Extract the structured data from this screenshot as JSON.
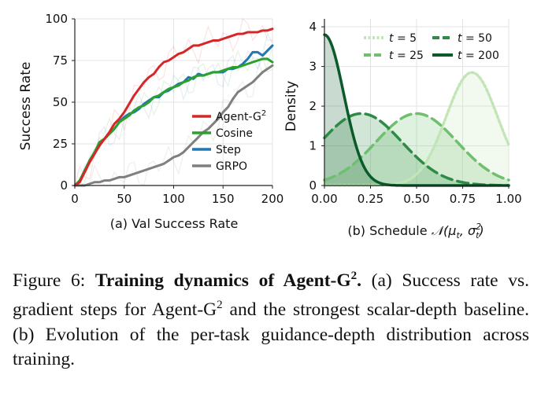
{
  "chart_data": [
    {
      "type": "line",
      "title": "",
      "sub_caption": "(a) Val Success Rate",
      "xlabel": "",
      "ylabel": "Success Rate",
      "xlim": [
        0,
        200
      ],
      "ylim": [
        0,
        100
      ],
      "xticks": [
        0,
        50,
        100,
        150,
        200
      ],
      "yticks": [
        0,
        25,
        50,
        75,
        100
      ],
      "grid": true,
      "legend_position": "lower-right",
      "series": [
        {
          "name": "Agent-G",
          "name_sup": "2",
          "color": "#d62728",
          "x": [
            0,
            5,
            10,
            15,
            20,
            25,
            30,
            35,
            40,
            45,
            50,
            55,
            60,
            65,
            70,
            75,
            80,
            85,
            90,
            95,
            100,
            105,
            110,
            115,
            120,
            125,
            130,
            135,
            140,
            145,
            150,
            155,
            160,
            165,
            170,
            175,
            180,
            185,
            190,
            195,
            200
          ],
          "y": [
            0,
            2,
            8,
            14,
            19,
            24,
            28,
            32,
            37,
            40,
            44,
            49,
            54,
            58,
            62,
            65,
            67,
            71,
            74,
            75,
            77,
            79,
            80,
            82,
            84,
            84,
            85,
            86,
            87,
            87,
            88,
            89,
            90,
            91,
            91,
            92,
            92,
            92,
            93,
            93,
            94
          ]
        },
        {
          "name": "Cosine",
          "color": "#2ca02c",
          "x": [
            0,
            5,
            10,
            15,
            20,
            25,
            30,
            35,
            40,
            45,
            50,
            55,
            60,
            65,
            70,
            75,
            80,
            85,
            90,
            95,
            100,
            105,
            110,
            115,
            120,
            125,
            130,
            135,
            140,
            145,
            150,
            155,
            160,
            165,
            170,
            175,
            180,
            185,
            190,
            195,
            200
          ],
          "y": [
            0,
            3,
            9,
            15,
            20,
            26,
            28,
            31,
            34,
            38,
            40,
            42,
            45,
            47,
            48,
            50,
            53,
            54,
            56,
            58,
            59,
            60,
            62,
            63,
            65,
            66,
            66,
            67,
            68,
            68,
            69,
            70,
            71,
            71,
            72,
            73,
            74,
            75,
            76,
            76,
            74
          ]
        },
        {
          "name": "Step",
          "color": "#1f77b4",
          "x": [
            0,
            5,
            10,
            15,
            20,
            25,
            30,
            35,
            40,
            45,
            50,
            55,
            60,
            65,
            70,
            75,
            80,
            85,
            90,
            95,
            100,
            105,
            110,
            115,
            120,
            125,
            130,
            135,
            140,
            145,
            150,
            155,
            160,
            165,
            170,
            175,
            180,
            185,
            190,
            195,
            200
          ],
          "y": [
            0,
            3,
            9,
            15,
            20,
            24,
            28,
            31,
            34,
            38,
            41,
            43,
            44,
            46,
            49,
            51,
            53,
            53,
            56,
            57,
            59,
            61,
            62,
            65,
            64,
            67,
            66,
            67,
            68,
            68,
            68,
            70,
            70,
            71,
            73,
            76,
            80,
            80,
            78,
            81,
            84
          ]
        },
        {
          "name": "GRPO",
          "color": "#7f7f7f",
          "x": [
            0,
            5,
            10,
            15,
            20,
            25,
            30,
            35,
            40,
            45,
            50,
            55,
            60,
            65,
            70,
            75,
            80,
            85,
            90,
            95,
            100,
            105,
            110,
            115,
            120,
            125,
            130,
            135,
            140,
            145,
            150,
            155,
            160,
            165,
            170,
            175,
            180,
            185,
            190,
            195,
            200
          ],
          "y": [
            0,
            0,
            0,
            1,
            2,
            2,
            3,
            3,
            4,
            5,
            5,
            6,
            7,
            8,
            9,
            10,
            11,
            12,
            13,
            15,
            17,
            18,
            20,
            23,
            26,
            29,
            32,
            34,
            37,
            40,
            44,
            47,
            52,
            56,
            58,
            60,
            62,
            65,
            68,
            70,
            72
          ]
        }
      ]
    },
    {
      "type": "area",
      "title": "",
      "sub_caption_prefix": "(b) Schedule ",
      "sub_caption_math": "N(μt, σt²)",
      "xlabel": "",
      "ylabel": "Density",
      "xlim": [
        0,
        1
      ],
      "ylim": [
        0,
        4.2
      ],
      "xticks": [
        "0.00",
        "0.25",
        "0.50",
        "0.75",
        "1.00"
      ],
      "yticks": [
        0,
        1,
        2,
        3,
        4
      ],
      "grid": true,
      "legend_position": "top",
      "series": [
        {
          "name": "t = 5",
          "label_var": "t",
          "label_value": "5",
          "mu": 0.8,
          "sigma": 0.14,
          "color": "#c2e5b8",
          "dash": "3,3"
        },
        {
          "name": "t = 25",
          "label_var": "t",
          "label_value": "25",
          "mu": 0.5,
          "sigma": 0.22,
          "color": "#6fbf6f",
          "dash": "14,7"
        },
        {
          "name": "t = 50",
          "label_var": "t",
          "label_value": "50",
          "mu": 0.2,
          "sigma": 0.22,
          "color": "#2e8b46",
          "dash": "14,7"
        },
        {
          "name": "t = 200",
          "label_var": "t",
          "label_value": "200",
          "mu": 0.0,
          "sigma": 0.105,
          "color": "#0b5a2a",
          "dash": ""
        }
      ]
    }
  ],
  "caption": {
    "label": "Figure 6:",
    "bold_title": "Training dynamics of Agent-G",
    "bold_sup": "2",
    "bold_end": ".",
    "text_a": " (a) Success rate vs. gradient steps for Agent-G",
    "sup_a": "2",
    "text_b": " and the strongest scalar-depth baseline.  (b) Evolution of the per-task guidance-depth distribution across training."
  }
}
